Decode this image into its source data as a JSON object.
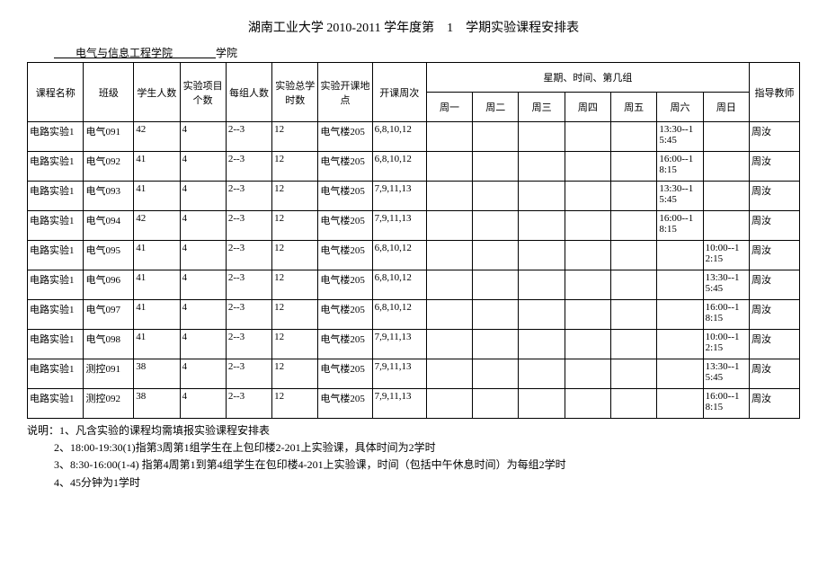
{
  "title": "湖南工业大学 2010-2011 学年度第　1　学期实验课程安排表",
  "subtitle_prefix": "",
  "subtitle_underlined": "　　电气与信息工程学院　　　　",
  "subtitle_suffix": "学院",
  "headers": {
    "course": "课程名称",
    "class": "班级",
    "students": "学生人数",
    "projects": "实验项目个数",
    "group_size": "每组人数",
    "total_hours": "实验总学时数",
    "location": "实验开课地点",
    "weeks": "开课周次",
    "day_group": "星期、时间、第几组",
    "mon": "周一",
    "tue": "周二",
    "wed": "周三",
    "thu": "周四",
    "fri": "周五",
    "sat": "周六",
    "sun": "周日",
    "teacher": "指导教师"
  },
  "rows": [
    {
      "course": "电路实验1",
      "class": "电气091",
      "students": "42",
      "projects": "4",
      "group_size": "2--3",
      "total_hours": "12",
      "location": "电气楼205",
      "weeks": "6,8,10,12",
      "mon": "",
      "tue": "",
      "wed": "",
      "thu": "",
      "fri": "",
      "sat": "13:30--15:45",
      "sun": "",
      "teacher": "周汝"
    },
    {
      "course": "电路实验1",
      "class": "电气092",
      "students": "41",
      "projects": "4",
      "group_size": "2--3",
      "total_hours": "12",
      "location": "电气楼205",
      "weeks": "6,8,10,12",
      "mon": "",
      "tue": "",
      "wed": "",
      "thu": "",
      "fri": "",
      "sat": "16:00--18:15",
      "sun": "",
      "teacher": "周汝"
    },
    {
      "course": "电路实验1",
      "class": "电气093",
      "students": "41",
      "projects": "4",
      "group_size": "2--3",
      "total_hours": "12",
      "location": "电气楼205",
      "weeks": "7,9,11,13",
      "mon": "",
      "tue": "",
      "wed": "",
      "thu": "",
      "fri": "",
      "sat": "13:30--15:45",
      "sun": "",
      "teacher": "周汝"
    },
    {
      "course": "电路实验1",
      "class": "电气094",
      "students": "42",
      "projects": "4",
      "group_size": "2--3",
      "total_hours": "12",
      "location": "电气楼205",
      "weeks": "7,9,11,13",
      "mon": "",
      "tue": "",
      "wed": "",
      "thu": "",
      "fri": "",
      "sat": "16:00--18:15",
      "sun": "",
      "teacher": "周汝"
    },
    {
      "course": "电路实验1",
      "class": "电气095",
      "students": "41",
      "projects": "4",
      "group_size": "2--3",
      "total_hours": "12",
      "location": "电气楼205",
      "weeks": "6,8,10,12",
      "mon": "",
      "tue": "",
      "wed": "",
      "thu": "",
      "fri": "",
      "sat": "",
      "sun": "10:00--12:15",
      "teacher": "周汝"
    },
    {
      "course": "电路实验1",
      "class": "电气096",
      "students": "41",
      "projects": "4",
      "group_size": "2--3",
      "total_hours": "12",
      "location": "电气楼205",
      "weeks": "6,8,10,12",
      "mon": "",
      "tue": "",
      "wed": "",
      "thu": "",
      "fri": "",
      "sat": "",
      "sun": "13:30--15:45",
      "teacher": "周汝"
    },
    {
      "course": "电路实验1",
      "class": "电气097",
      "students": "41",
      "projects": "4",
      "group_size": "2--3",
      "total_hours": "12",
      "location": "电气楼205",
      "weeks": "6,8,10,12",
      "mon": "",
      "tue": "",
      "wed": "",
      "thu": "",
      "fri": "",
      "sat": "",
      "sun": "16:00--18:15",
      "teacher": "周汝"
    },
    {
      "course": "电路实验1",
      "class": "电气098",
      "students": "41",
      "projects": "4",
      "group_size": "2--3",
      "total_hours": "12",
      "location": "电气楼205",
      "weeks": "7,9,11,13",
      "mon": "",
      "tue": "",
      "wed": "",
      "thu": "",
      "fri": "",
      "sat": "",
      "sun": "10:00--12:15",
      "teacher": "周汝"
    },
    {
      "course": "电路实验1",
      "class": "测控091",
      "students": "38",
      "projects": "4",
      "group_size": "2--3",
      "total_hours": "12",
      "location": "电气楼205",
      "weeks": "7,9,11,13",
      "mon": "",
      "tue": "",
      "wed": "",
      "thu": "",
      "fri": "",
      "sat": "",
      "sun": "13:30--15:45",
      "teacher": "周汝"
    },
    {
      "course": "电路实验1",
      "class": "测控092",
      "students": "38",
      "projects": "4",
      "group_size": "2--3",
      "total_hours": "12",
      "location": "电气楼205",
      "weeks": "7,9,11,13",
      "mon": "",
      "tue": "",
      "wed": "",
      "thu": "",
      "fri": "",
      "sat": "",
      "sun": "16:00--18:15",
      "teacher": "周汝"
    }
  ],
  "notes": [
    "说明：1、凡含实验的课程均需填报实验课程安排表",
    "2、18:00-19:30(1)指第3周第1组学生在上包印楼2-201上实验课，具体时间为2学时",
    "3、8:30-16:00(1-4) 指第4周第1到第4组学生在包印楼4-201上实验课，时间（包括中午休息时间）为每组2学时",
    "4、45分钟为1学时"
  ]
}
